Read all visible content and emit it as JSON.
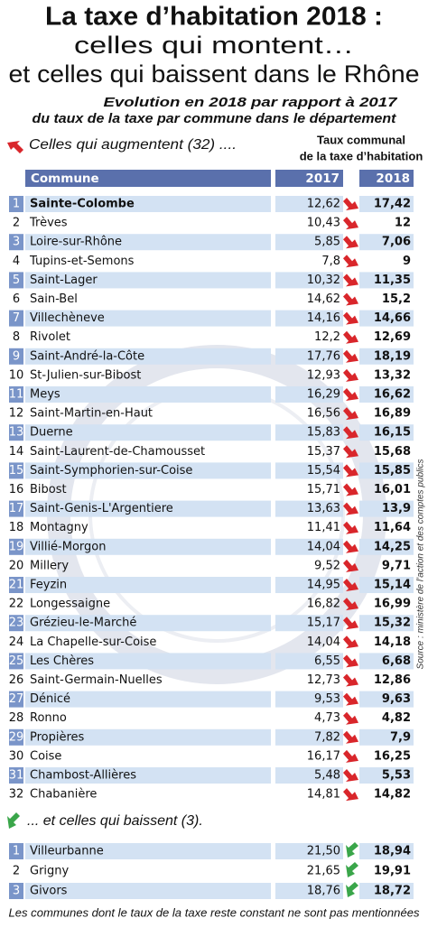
{
  "header": {
    "title": "La taxe d’habitation 2018 :",
    "subtitle_lines": [
      "celles qui montent…",
      "et celles qui baissent dans le Rhône"
    ],
    "intro_lines": [
      "Evolution en 2018 par rapport à 2017",
      "du taux de la taxe par commune dans le département"
    ]
  },
  "increase": {
    "heading": "Celles qui augmentent (32) ....",
    "column_group": [
      "Taux communal",
      "de la taxe d’habitation"
    ],
    "columns": [
      "Commune",
      "2017",
      "2018"
    ],
    "rows": [
      [
        "1",
        "Sainte-Colombe",
        "12,62",
        "17,42"
      ],
      [
        "2",
        "Trèves",
        "10,43",
        "12"
      ],
      [
        "3",
        "Loire-sur-Rhône",
        "5,85",
        "7,06"
      ],
      [
        "4",
        "Tupins-et-Semons",
        "7,8",
        "9"
      ],
      [
        "5",
        "Saint-Lager",
        "10,32",
        "11,35"
      ],
      [
        "6",
        "Sain-Bel",
        "14,62",
        "15,2"
      ],
      [
        "7",
        "Villechèneve",
        "14,16",
        "14,66"
      ],
      [
        "8",
        "Rivolet",
        "12,2",
        "12,69"
      ],
      [
        "9",
        "Saint-André-la-Côte",
        "17,76",
        "18,19"
      ],
      [
        "10",
        "St-Julien-sur-Bibost",
        "12,93",
        "13,32"
      ],
      [
        "11",
        "Meys",
        "16,29",
        "16,62"
      ],
      [
        "12",
        "Saint-Martin-en-Haut",
        "16,56",
        "16,89"
      ],
      [
        "13",
        "Duerne",
        "15,83",
        "16,15"
      ],
      [
        "14",
        "Saint-Laurent-de-Chamousset",
        "15,37",
        "15,68"
      ],
      [
        "15",
        "Saint-Symphorien-sur-Coise",
        "15,54",
        "15,85"
      ],
      [
        "16",
        "Bibost",
        "15,71",
        "16,01"
      ],
      [
        "17",
        "Saint-Genis-L'Argentiere",
        "13,63",
        "13,9"
      ],
      [
        "18",
        "Montagny",
        "11,41",
        "11,64"
      ],
      [
        "19",
        "Villié-Morgon",
        "14,04",
        "14,25"
      ],
      [
        "20",
        "Millery",
        "9,52",
        "9,71"
      ],
      [
        "21",
        "Feyzin",
        "14,95",
        "15,14"
      ],
      [
        "22",
        "Longessaigne",
        "16,82",
        "16,99"
      ],
      [
        "23",
        "Grézieu-le-Marché",
        "15,17",
        "15,32"
      ],
      [
        "24",
        "La Chapelle-sur-Coise",
        "14,04",
        "14,18"
      ],
      [
        "25",
        "Les Chères",
        "6,55",
        "6,68"
      ],
      [
        "26",
        "Saint-Germain-Nuelles",
        "12,73",
        "12,86"
      ],
      [
        "27",
        "Dénicé",
        "9,53",
        "9,63"
      ],
      [
        "28",
        "Ronno",
        "4,73",
        "4,82"
      ],
      [
        "29",
        "Propières",
        "7,82",
        "7,9"
      ],
      [
        "30",
        "Coise",
        "16,17",
        "16,25"
      ],
      [
        "31",
        "Chambost-Allières",
        "5,48",
        "5,53"
      ],
      [
        "32",
        "Chabanière",
        "14,81",
        "14,82"
      ]
    ]
  },
  "decrease": {
    "heading": "... et celles qui baissent (3).",
    "rows": [
      [
        "1",
        "Villeurbanne",
        "21,50",
        "18,94"
      ],
      [
        "2",
        "Grigny",
        "21,65",
        "19,91"
      ],
      [
        "3",
        "Givors",
        "18,76",
        "18,72"
      ]
    ]
  },
  "footnote": "Les communes dont le taux de la taxe reste constant ne sont pas mentionnées",
  "source": "Source : ministère de l’action et des comptes publics"
}
